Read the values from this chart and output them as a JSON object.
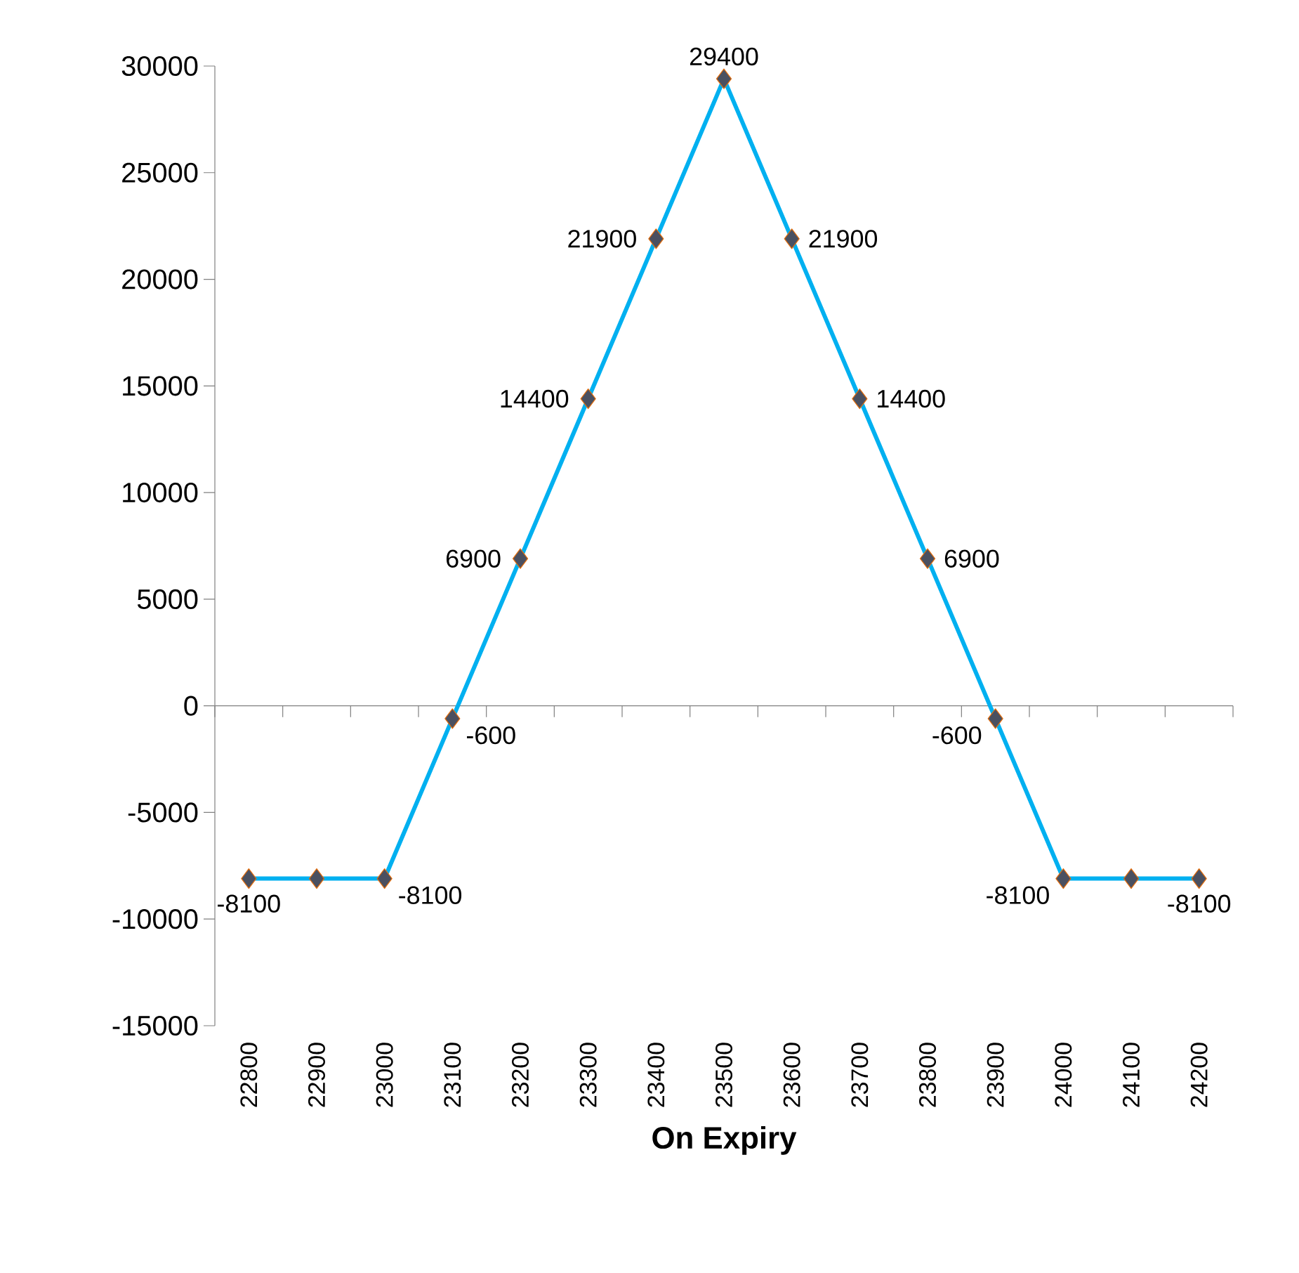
{
  "chart_data": {
    "type": "line",
    "xlabel": "On Expiry",
    "categories": [
      "22800",
      "22900",
      "23000",
      "23100",
      "23200",
      "23300",
      "23400",
      "23500",
      "23600",
      "23700",
      "23800",
      "23900",
      "24000",
      "24100",
      "24200"
    ],
    "series": [
      {
        "color": "#00b0f0",
        "values": [
          -8100,
          -8100,
          -8100,
          -600,
          6900,
          14400,
          21900,
          29400,
          21900,
          14400,
          6900,
          -600,
          -8100,
          -8100,
          -8100
        ]
      }
    ],
    "value_labels": [
      "-8100",
      null,
      "-8100",
      "-600",
      "6900",
      "14400",
      "21900",
      "29400",
      "21900",
      "14400",
      "6900",
      "-600",
      "-8100",
      null,
      "-8100"
    ],
    "ylim": [
      -15000,
      30000
    ],
    "yticks": [
      -15000,
      -10000,
      -5000,
      0,
      5000,
      10000,
      15000,
      20000,
      25000,
      30000
    ],
    "marker": "diamond"
  }
}
